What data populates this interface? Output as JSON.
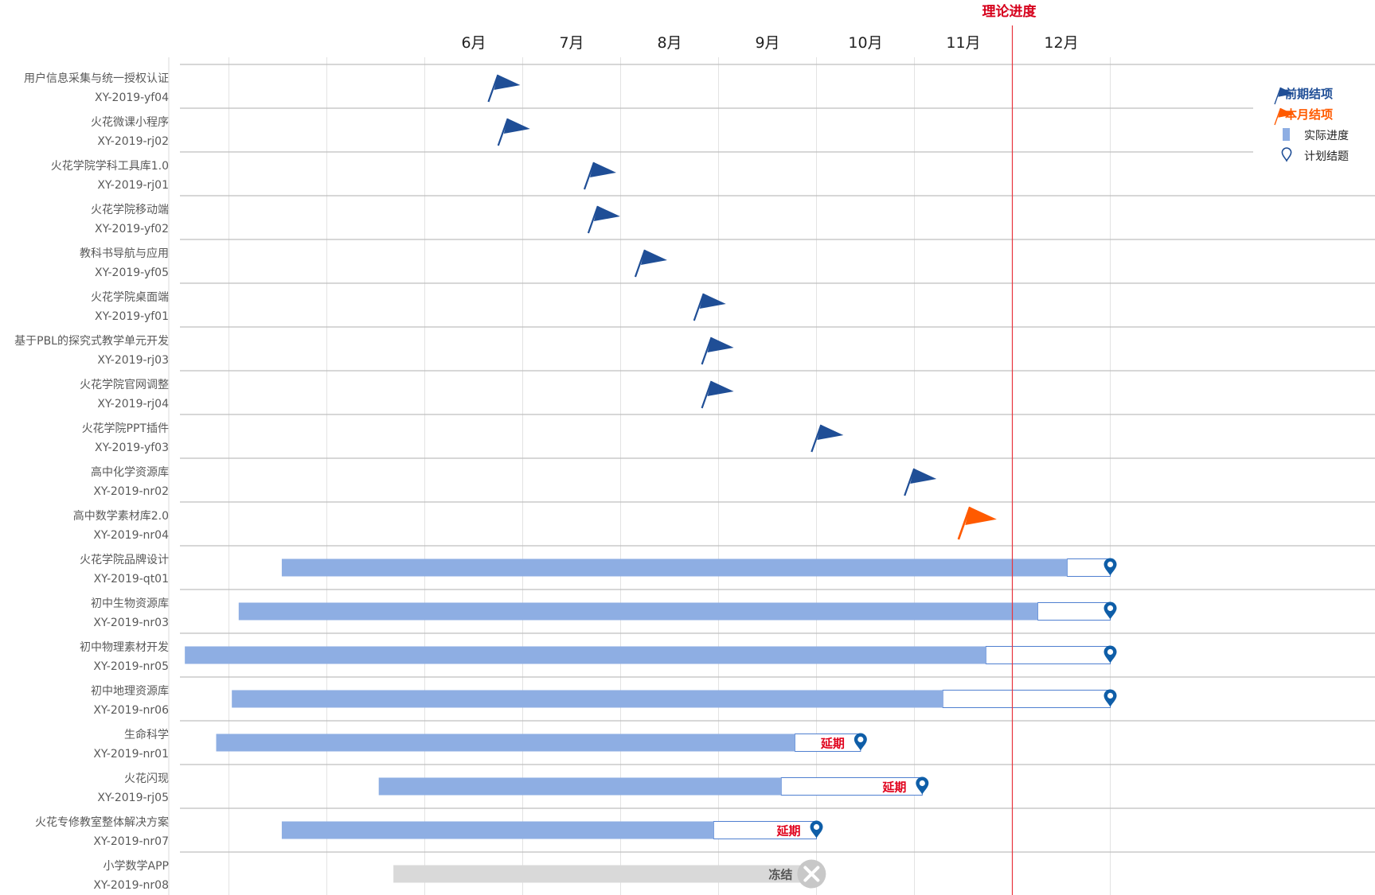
{
  "chart_data": {
    "type": "gantt",
    "title": "",
    "months": [
      "6月",
      "7月",
      "8月",
      "9月",
      "10月",
      "11月",
      "12月"
    ],
    "theory_label": "理论进度",
    "theory_month": 11.5,
    "legend": [
      {
        "label": "前期结项",
        "icon": "blue-flag-icon",
        "color": "#1f4e96"
      },
      {
        "label": "本月结项",
        "icon": "orange-flag-icon",
        "color": "#ff5a00"
      },
      {
        "label": "实际进度",
        "icon": "bar-swatch-icon",
        "color": "#8eaee3"
      },
      {
        "label": "计划结题",
        "icon": "location-pin-icon",
        "color": "#1f4e96"
      }
    ],
    "colors": {
      "early_flag": "#1f4e96",
      "month_flag": "#ff5a00",
      "bar": "#8eaee3",
      "bar_outline": "#4f7fd0",
      "pin": "#0f5ea8",
      "frozen_bar": "#d9d9d9",
      "theory_line": "#e8343c",
      "delay_text": "#e0001b"
    },
    "projects": [
      {
        "name": "用户信息采集与统一授权认证",
        "code": "XY-2019-yf04",
        "type": "flag",
        "flag": "early",
        "month": 6.15
      },
      {
        "name": "火花微课小程序",
        "code": "XY-2019-rj02",
        "type": "flag",
        "flag": "early",
        "month": 6.25
      },
      {
        "name": "火花学院学科工具库1.0",
        "code": "XY-2019-rj01",
        "type": "flag",
        "flag": "early",
        "month": 7.13
      },
      {
        "name": "火花学院移动端",
        "code": "XY-2019-yf02",
        "type": "flag",
        "flag": "early",
        "month": 7.17
      },
      {
        "name": "教科书导航与应用",
        "code": "XY-2019-yf05",
        "type": "flag",
        "flag": "early",
        "month": 7.65
      },
      {
        "name": "火花学院桌面端",
        "code": "XY-2019-yf01",
        "type": "flag",
        "flag": "early",
        "month": 8.25
      },
      {
        "name": "基于PBL的探究式教学单元开发",
        "code": "XY-2019-rj03",
        "type": "flag",
        "flag": "early",
        "month": 8.33
      },
      {
        "name": "火花学院官网调整",
        "code": "XY-2019-rj04",
        "type": "flag",
        "flag": "early",
        "month": 8.33
      },
      {
        "name": "火花学院PPT插件",
        "code": "XY-2019-yf03",
        "type": "flag",
        "flag": "early",
        "month": 9.45
      },
      {
        "name": "高中化学资源库",
        "code": "XY-2019-nr02",
        "type": "flag",
        "flag": "early",
        "month": 10.4
      },
      {
        "name": "高中数学素材库2.0",
        "code": "XY-2019-nr04",
        "type": "flag",
        "flag": "month",
        "month": 10.95
      },
      {
        "name": "火花学院品牌设计",
        "code": "XY-2019-qt01",
        "type": "bar",
        "start": 4.04,
        "actual": 12.06,
        "plan": 12.5,
        "status": ""
      },
      {
        "name": "初中生物资源库",
        "code": "XY-2019-nr03",
        "type": "bar",
        "start": 3.6,
        "actual": 11.76,
        "plan": 12.5,
        "status": ""
      },
      {
        "name": "初中物理素材开发",
        "code": "XY-2019-nr05",
        "type": "bar",
        "start": 3.05,
        "actual": 11.23,
        "plan": 12.5,
        "status": ""
      },
      {
        "name": "初中地理资源库",
        "code": "XY-2019-nr06",
        "type": "bar",
        "start": 3.53,
        "actual": 10.79,
        "plan": 12.5,
        "status": ""
      },
      {
        "name": "生命科学",
        "code": "XY-2019-nr01",
        "type": "bar",
        "start": 3.37,
        "actual": 9.28,
        "plan": 9.95,
        "status": "延期"
      },
      {
        "name": "火花闪现",
        "code": "XY-2019-rj05",
        "type": "bar",
        "start": 5.03,
        "actual": 9.14,
        "plan": 10.58,
        "status": "延期"
      },
      {
        "name": "火花专修教室整体解决方案",
        "code": "XY-2019-nr07",
        "type": "bar",
        "start": 4.04,
        "actual": 8.45,
        "plan": 9.5,
        "status": "延期"
      },
      {
        "name": "小学数学APP",
        "code": "XY-2019-nr08",
        "type": "frozen",
        "start": 5.18,
        "actual": 9.45,
        "status": "冻结"
      }
    ]
  }
}
